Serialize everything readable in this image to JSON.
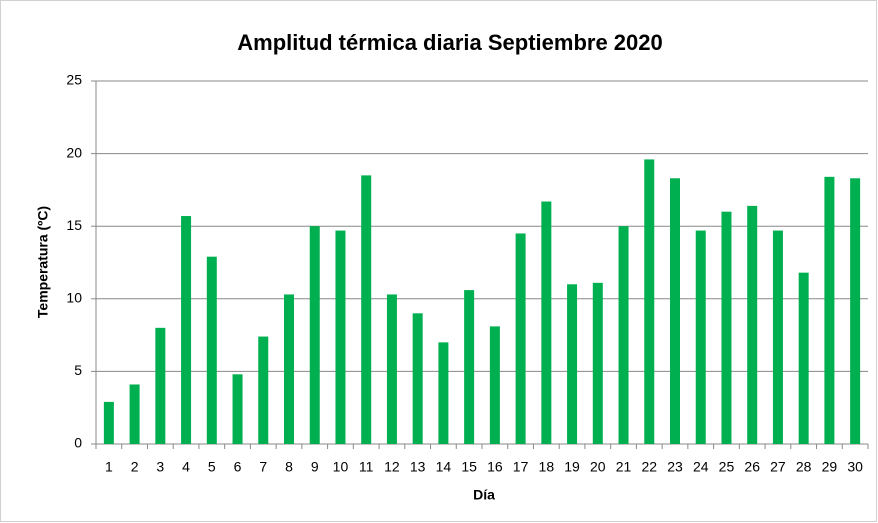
{
  "chart_data": {
    "type": "bar",
    "title": "Amplitud térmica diaria Septiembre 2020",
    "x_label": "Día",
    "y_label": "Temperatura (ºC)",
    "categories": [
      "1",
      "2",
      "3",
      "4",
      "5",
      "6",
      "7",
      "8",
      "9",
      "10",
      "11",
      "12",
      "13",
      "14",
      "15",
      "16",
      "17",
      "18",
      "19",
      "20",
      "21",
      "22",
      "23",
      "24",
      "25",
      "26",
      "27",
      "28",
      "29",
      "30"
    ],
    "values": [
      2.9,
      4.1,
      8.0,
      15.7,
      12.9,
      4.8,
      7.4,
      10.3,
      15.0,
      14.7,
      18.5,
      10.3,
      9.0,
      7.0,
      10.6,
      8.1,
      14.5,
      16.7,
      11.0,
      11.1,
      15.0,
      19.6,
      18.3,
      14.7,
      16.0,
      16.4,
      14.7,
      11.8,
      18.4,
      18.3
    ],
    "color": "#00b050",
    "ylim": [
      0,
      25
    ],
    "yticks": [
      0,
      5,
      10,
      15,
      20,
      25
    ],
    "grid": true
  }
}
